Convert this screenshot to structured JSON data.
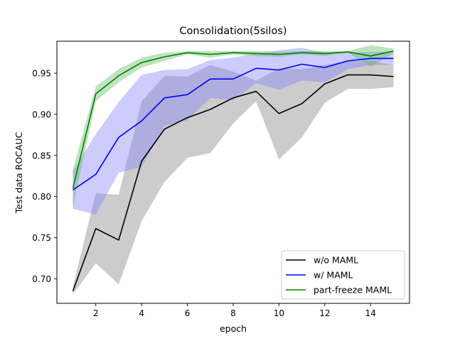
{
  "chart_data": {
    "type": "line",
    "title": "Consolidation(5silos)",
    "xlabel": "epoch",
    "ylabel": "Test data ROCAUC",
    "xlim": [
      0.3,
      15.7
    ],
    "ylim": [
      0.67,
      0.989
    ],
    "xticks": [
      2,
      4,
      6,
      8,
      10,
      12,
      14
    ],
    "yticks": [
      0.7,
      0.75,
      0.8,
      0.85,
      0.9,
      0.95
    ],
    "grid": false,
    "legend_position": "lower-right",
    "x": [
      1,
      2,
      3,
      4,
      5,
      6,
      7,
      8,
      9,
      10,
      11,
      12,
      13,
      14,
      15
    ],
    "series": [
      {
        "name": "w/o MAML",
        "color": "#000000",
        "band_color": "#808080",
        "values": [
          0.685,
          0.761,
          0.747,
          0.843,
          0.882,
          0.896,
          0.906,
          0.92,
          0.928,
          0.901,
          0.913,
          0.937,
          0.948,
          0.948,
          0.946
        ],
        "upper": [
          0.69,
          0.804,
          0.802,
          0.916,
          0.947,
          0.946,
          0.96,
          0.952,
          0.941,
          0.956,
          0.955,
          0.96,
          0.965,
          0.965,
          0.96
        ],
        "lower": [
          0.681,
          0.719,
          0.693,
          0.77,
          0.818,
          0.847,
          0.853,
          0.889,
          0.916,
          0.845,
          0.872,
          0.914,
          0.931,
          0.931,
          0.933
        ]
      },
      {
        "name": "w/ MAML",
        "color": "#0000ff",
        "band_color": "#8080ff",
        "values": [
          0.808,
          0.827,
          0.872,
          0.892,
          0.92,
          0.924,
          0.943,
          0.943,
          0.956,
          0.954,
          0.961,
          0.957,
          0.965,
          0.968,
          0.968
        ],
        "upper": [
          0.831,
          0.876,
          0.915,
          0.948,
          0.954,
          0.955,
          0.966,
          0.969,
          0.974,
          0.978,
          0.981,
          0.975,
          0.975,
          0.976,
          0.976
        ],
        "lower": [
          0.785,
          0.778,
          0.829,
          0.836,
          0.886,
          0.893,
          0.92,
          0.917,
          0.938,
          0.93,
          0.941,
          0.939,
          0.955,
          0.96,
          0.96
        ]
      },
      {
        "name": "part-freeze MAML",
        "color": "#008000",
        "band_color": "#5cb85c",
        "values": [
          0.81,
          0.925,
          0.947,
          0.963,
          0.97,
          0.975,
          0.973,
          0.975,
          0.974,
          0.973,
          0.975,
          0.974,
          0.976,
          0.971,
          0.977
        ],
        "upper": [
          0.833,
          0.934,
          0.955,
          0.969,
          0.975,
          0.977,
          0.977,
          0.977,
          0.977,
          0.976,
          0.977,
          0.977,
          0.977,
          0.984,
          0.98
        ],
        "lower": [
          0.787,
          0.916,
          0.939,
          0.957,
          0.965,
          0.973,
          0.969,
          0.973,
          0.971,
          0.97,
          0.973,
          0.971,
          0.975,
          0.958,
          0.974
        ]
      }
    ]
  }
}
